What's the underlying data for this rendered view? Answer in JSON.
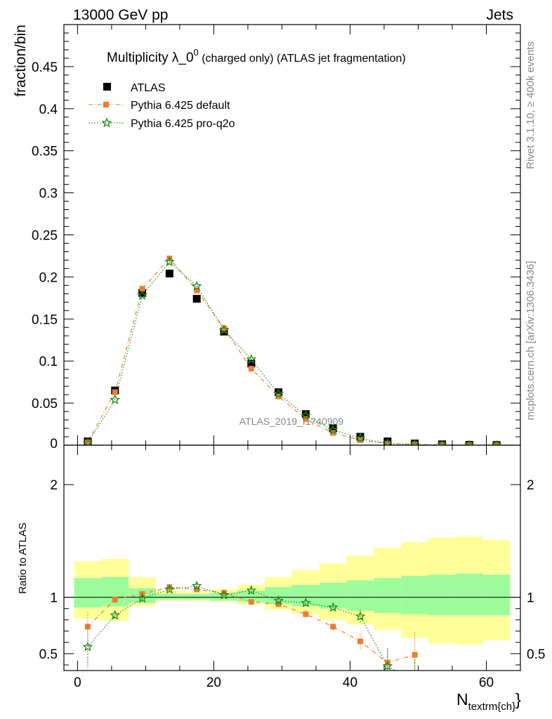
{
  "header": {
    "left": "13000 GeV pp",
    "right": "Jets"
  },
  "side_labels": {
    "rivet": "Rivet 3.1.10, ≥ 400k events",
    "mcplots": "mcplots.cern.ch [arXiv:1306.3436]"
  },
  "chart_data": [
    {
      "type": "scatter",
      "title": "Multiplicity λ_0⁰ (charged only) (ATLAS jet fragmentation)",
      "title_main": "Multiplicity λ_0",
      "title_sup": "0",
      "title_rest": " (charged only) (ATLAS jet fragmentation)",
      "ylabel": "fraction/bin",
      "watermark": "ATLAS_2019_I1740909",
      "xlim": [
        -2,
        65
      ],
      "ylim": [
        0,
        0.5
      ],
      "yticks": [
        0.05,
        0.1,
        0.15,
        0.2,
        0.25,
        0.3,
        0.35,
        0.4,
        0.45
      ],
      "ytick_labels": [
        "0.05",
        "0.1",
        "0.15",
        "0.2",
        "0.25",
        "0.3",
        "0.35",
        "0.4",
        "0.45"
      ],
      "ytick_bottom_label": "0",
      "legend_position": "top-left",
      "series": [
        {
          "name": "ATLAS",
          "color": "#000000",
          "marker": "square",
          "x": [
            1.5,
            5.5,
            9.5,
            13.5,
            17.5,
            21.5,
            25.5,
            29.5,
            33.5,
            37.5,
            41.5,
            45.5,
            49.5,
            53.5,
            57.5,
            61.5
          ],
          "y": [
            0.0045,
            0.065,
            0.181,
            0.204,
            0.174,
            0.135,
            0.097,
            0.063,
            0.037,
            0.02,
            0.01,
            0.0045,
            0.002,
            0.001,
            0.0004,
            0.0002
          ]
        },
        {
          "name": "Pythia 6.425 default",
          "color": "#f47a30",
          "marker": "square-small",
          "x": [
            1.5,
            5.5,
            9.5,
            13.5,
            17.5,
            21.5,
            25.5,
            29.5,
            33.5,
            37.5,
            41.5,
            45.5,
            49.5,
            53.5,
            57.5,
            61.5
          ],
          "y": [
            0.0034,
            0.063,
            0.186,
            0.222,
            0.184,
            0.139,
            0.091,
            0.058,
            0.031,
            0.0146,
            0.006,
            0.0019,
            0.001,
            0.0003,
            0.0001,
            3e-05
          ]
        },
        {
          "name": "Pythia 6.425 pro-q2o",
          "color": "#1a8c1a",
          "marker": "star",
          "x": [
            1.5,
            5.5,
            9.5,
            13.5,
            17.5,
            21.5,
            25.5,
            29.5,
            33.5,
            37.5,
            41.5,
            45.5,
            49.5,
            53.5,
            57.5,
            61.5
          ],
          "y": [
            0.0025,
            0.054,
            0.178,
            0.218,
            0.189,
            0.137,
            0.102,
            0.061,
            0.035,
            0.018,
            0.0083,
            0.0018,
            0.0006,
            0.0002,
            0.0001,
            3e-05
          ]
        }
      ]
    },
    {
      "type": "scatter",
      "ylabel": "Ratio to ATLAS",
      "xlabel": "N_textrm{ch}",
      "xlabel_main": "N",
      "xlabel_sub": "textrm{ch}",
      "xlim": [
        -2,
        65
      ],
      "ylim": [
        0.35,
        2.35
      ],
      "xticks": [
        0,
        20,
        40,
        60
      ],
      "xtick_labels": [
        "0",
        "20",
        "40",
        "60"
      ],
      "yticks": [
        0.5,
        1,
        2
      ],
      "ytick_labels": [
        "0.5",
        "1",
        "2"
      ],
      "bands": {
        "bins": [
          [
            -0.5,
            3.5
          ],
          [
            3.5,
            7.5
          ],
          [
            7.5,
            11.5
          ],
          [
            11.5,
            15.5
          ],
          [
            15.5,
            19.5
          ],
          [
            19.5,
            23.5
          ],
          [
            23.5,
            27.5
          ],
          [
            27.5,
            31.5
          ],
          [
            31.5,
            35.5
          ],
          [
            35.5,
            39.5
          ],
          [
            39.5,
            43.5
          ],
          [
            43.5,
            47.5
          ],
          [
            47.5,
            51.5
          ],
          [
            51.5,
            55.5
          ],
          [
            55.5,
            59.5
          ],
          [
            59.5,
            63.5
          ]
        ],
        "inner": {
          "color": "#9cfc9c",
          "lo": [
            0.91,
            0.92,
            0.95,
            0.98,
            0.98,
            0.97,
            0.96,
            0.94,
            0.92,
            0.9,
            0.88,
            0.86,
            0.85,
            0.84,
            0.84,
            0.84
          ],
          "hi": [
            1.17,
            1.18,
            1.08,
            1.03,
            1.03,
            1.04,
            1.06,
            1.09,
            1.11,
            1.13,
            1.15,
            1.17,
            1.19,
            1.2,
            1.21,
            1.2
          ]
        },
        "outer": {
          "color": "#ffff99",
          "lo": [
            0.81,
            0.79,
            0.92,
            0.97,
            0.97,
            0.96,
            0.94,
            0.89,
            0.85,
            0.8,
            0.76,
            0.71,
            0.64,
            0.59,
            0.58,
            0.62
          ],
          "hi": [
            1.32,
            1.34,
            1.18,
            1.06,
            1.05,
            1.07,
            1.11,
            1.18,
            1.24,
            1.3,
            1.37,
            1.44,
            1.49,
            1.53,
            1.54,
            1.51
          ]
        }
      },
      "series": [
        {
          "name": "Pythia 6.425 default",
          "color": "#f47a30",
          "marker": "square-small",
          "x": [
            1.5,
            5.5,
            9.5,
            13.5,
            17.5,
            21.5,
            25.5,
            29.5,
            33.5,
            37.5,
            41.5,
            45.5,
            49.5
          ],
          "y": [
            0.74,
            0.98,
            1.03,
            1.09,
            1.07,
            1.04,
            0.96,
            0.94,
            0.85,
            0.74,
            0.61,
            0.42,
            0.49
          ],
          "err": [
            0.13,
            0.03,
            0.02,
            0.02,
            0.02,
            0.02,
            0.02,
            0.03,
            0.04,
            0.05,
            0.07,
            0.12,
            0.2
          ]
        },
        {
          "name": "Pythia 6.425 pro-q2o",
          "color": "#1a8c1a",
          "marker": "star",
          "x": [
            1.5,
            5.5,
            9.5,
            13.5,
            17.5,
            21.5,
            25.5,
            29.5,
            33.5,
            37.5,
            41.5,
            45.5,
            49.5
          ],
          "y": [
            0.56,
            0.84,
            0.99,
            1.07,
            1.1,
            1.02,
            1.06,
            0.97,
            0.95,
            0.91,
            0.83,
            0.39,
            0.25
          ],
          "err": [
            0.19,
            0.03,
            0.02,
            0.02,
            0.02,
            0.02,
            0.02,
            0.02,
            0.03,
            0.04,
            0.06,
            0.16,
            0.2
          ]
        }
      ]
    }
  ]
}
